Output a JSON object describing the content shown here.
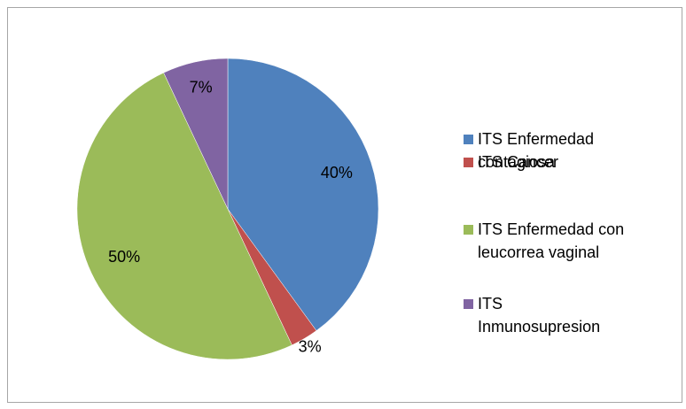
{
  "chart_data": {
    "type": "pie",
    "categories": [
      "ITS Enfermedad contagiosa",
      "ITS Cancer",
      "ITS Enfermedad con leucorrea vaginal",
      "ITS Inmunosupresion"
    ],
    "values": [
      40,
      3,
      50,
      7
    ],
    "value_labels": [
      "40%",
      "3%",
      "50%",
      "7%"
    ],
    "colors": [
      "#4f81bd",
      "#c0504d",
      "#9bbb59",
      "#8064a2"
    ],
    "legend": "right"
  }
}
